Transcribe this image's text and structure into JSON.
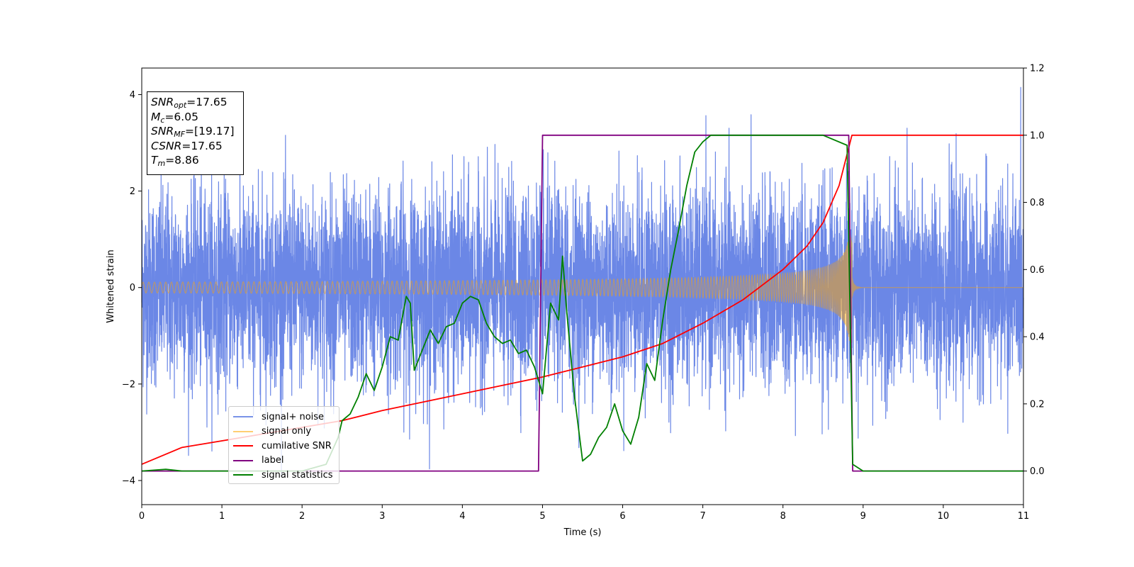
{
  "chart_data": {
    "type": "line",
    "xlabel": "Time (s)",
    "ylabel": "Whitened strain",
    "xlim": [
      0,
      11
    ],
    "ylim_left": [
      -4.5,
      4.55
    ],
    "ylim_right": [
      -0.1,
      1.2
    ],
    "x_ticks": [
      "0",
      "1",
      "2",
      "3",
      "4",
      "5",
      "6",
      "7",
      "8",
      "9",
      "10",
      "11"
    ],
    "y_ticks_left": [
      "4",
      "2",
      "0",
      "−2",
      "−4"
    ],
    "y_ticks_left_values": [
      4,
      2,
      0,
      -2,
      -4
    ],
    "y_ticks_right": [
      "1.2",
      "1.0",
      "0.8",
      "0.6",
      "0.4",
      "0.2",
      "0.0"
    ],
    "y_ticks_right_values": [
      1.2,
      1.0,
      0.8,
      0.6,
      0.4,
      0.2,
      0.0
    ],
    "annotations": {
      "snr_opt": {
        "sym": "SNR",
        "sub": "opt",
        "val": "=17.65"
      },
      "mc": {
        "sym": "M",
        "sub": "c",
        "val": "=6.05"
      },
      "snr_mf": {
        "sym": "SNR",
        "sub": "MF",
        "val": "=[19.17]"
      },
      "csnr": {
        "sym": "CSNR",
        "val": "=17.65"
      },
      "tm": {
        "sym": "T",
        "sub": "m",
        "val": "=8.86"
      }
    },
    "legend": {
      "placement": "lower-left",
      "entries": [
        "signal+ noise",
        "signal only",
        "cumilative SNR",
        "label",
        "signal statistics"
      ]
    },
    "series": [
      {
        "name": "signal+ noise",
        "axis": "left",
        "color": "#6b87e6",
        "kind": "noise",
        "std": 1.0,
        "x_range": [
          0,
          11
        ]
      },
      {
        "name": "signal only",
        "axis": "left",
        "color": "#ffa500",
        "kind": "chirp",
        "merger_time": 8.86,
        "peak_amplitude": 1.15
      },
      {
        "name": "cumilative SNR",
        "axis": "right",
        "color": "#ff0000",
        "x": [
          0,
          0.5,
          1,
          1.5,
          2,
          2.5,
          3,
          3.5,
          4,
          4.5,
          5,
          5.5,
          6,
          6.5,
          7,
          7.5,
          8,
          8.3,
          8.5,
          8.7,
          8.86,
          11
        ],
        "y": [
          0.02,
          0.07,
          0.09,
          0.11,
          0.13,
          0.15,
          0.18,
          0.205,
          0.23,
          0.255,
          0.28,
          0.31,
          0.34,
          0.38,
          0.44,
          0.51,
          0.6,
          0.67,
          0.74,
          0.85,
          1.0,
          1.0
        ]
      },
      {
        "name": "label",
        "axis": "right",
        "color": "#800080",
        "x": [
          0,
          4.95,
          5.0,
          8.82,
          8.87,
          11
        ],
        "y": [
          0,
          0,
          1,
          1,
          0,
          0
        ]
      },
      {
        "name": "signal statistics",
        "axis": "right",
        "color": "#008000",
        "x": [
          0,
          0.3,
          0.5,
          1,
          1.5,
          2,
          2.3,
          2.45,
          2.5,
          2.6,
          2.7,
          2.8,
          2.9,
          3.0,
          3.1,
          3.2,
          3.3,
          3.35,
          3.4,
          3.5,
          3.6,
          3.7,
          3.8,
          3.9,
          4.0,
          4.1,
          4.2,
          4.3,
          4.4,
          4.5,
          4.6,
          4.7,
          4.8,
          4.9,
          5.0,
          5.1,
          5.2,
          5.25,
          5.3,
          5.4,
          5.5,
          5.6,
          5.7,
          5.8,
          5.9,
          6.0,
          6.1,
          6.2,
          6.3,
          6.4,
          6.5,
          6.6,
          6.7,
          6.8,
          6.9,
          7.0,
          7.1,
          7.2,
          7.5,
          8.0,
          8.5,
          8.8,
          8.87,
          9.0,
          11
        ],
        "y": [
          0.0,
          0.005,
          0.0,
          0.0,
          0.0,
          0.0,
          0.02,
          0.1,
          0.15,
          0.17,
          0.22,
          0.29,
          0.24,
          0.31,
          0.4,
          0.39,
          0.52,
          0.5,
          0.3,
          0.36,
          0.42,
          0.38,
          0.43,
          0.44,
          0.5,
          0.52,
          0.51,
          0.44,
          0.4,
          0.38,
          0.39,
          0.35,
          0.36,
          0.31,
          0.23,
          0.5,
          0.45,
          0.64,
          0.48,
          0.22,
          0.03,
          0.05,
          0.1,
          0.13,
          0.2,
          0.12,
          0.08,
          0.16,
          0.32,
          0.27,
          0.45,
          0.6,
          0.72,
          0.85,
          0.95,
          0.98,
          1.0,
          1.0,
          1.0,
          1.0,
          1.0,
          0.97,
          0.02,
          0.0,
          0.0
        ]
      }
    ]
  }
}
